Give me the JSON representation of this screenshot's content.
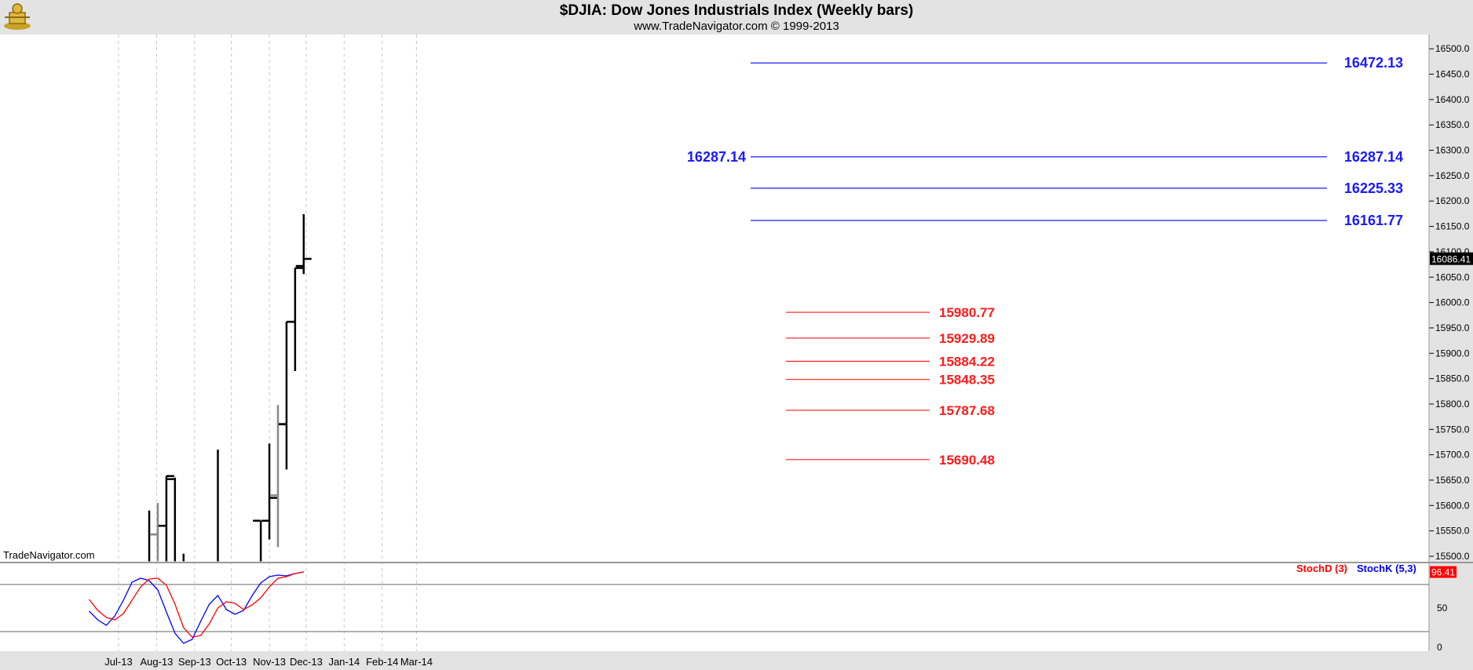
{
  "title": "$DJIA:  Dow Jones Industrials Index  (Weekly bars)",
  "subtitle": "www.TradeNavigator.com © 1999-2013",
  "watermark": "TradeNavigator.com",
  "legend": {
    "stochd": "StochD (3)",
    "stochk": "StochK (5,3)"
  },
  "colors": {
    "blue_levels": "#1a1aff",
    "red_levels": "#ff1a1a",
    "stochd": "#ff0000",
    "stochk": "#0000ff",
    "bar": "#000000",
    "bar_gray": "#888888",
    "background": "#ffffff",
    "frame": "#e3e3e3"
  },
  "chart_data": [
    {
      "type": "ohlc",
      "x_axis_labels": [
        "Jul-13",
        "Aug-13",
        "Sep-13",
        "Oct-13",
        "Nov-13",
        "Dec-13",
        "Jan-14",
        "Feb-14",
        "Mar-14"
      ],
      "x_axis_dates": [
        "2013-07-01",
        "2013-08-01",
        "2013-09-01",
        "2013-10-01",
        "2013-11-01",
        "2013-12-01",
        "2014-01-01",
        "2014-02-01",
        "2014-03-01"
      ],
      "y_ticks": [
        "15500.0",
        "15550.0",
        "15600.0",
        "15650.0",
        "15700.0",
        "15750.0",
        "15800.0",
        "15850.0",
        "15900.0",
        "15950.0",
        "16000.0",
        "16050.0",
        "16100.0",
        "16150.0",
        "16200.0",
        "16250.0",
        "16300.0",
        "16350.0",
        "16400.0",
        "16450.0",
        "16500.0"
      ],
      "ylim": [
        15490,
        16540
      ],
      "last_price": "16086.41",
      "bars": [
        {
          "date": "2013-07-26",
          "high": 15590,
          "low": 15490,
          "close": 15543,
          "color": "black"
        },
        {
          "date": "2013-08-02",
          "high": 15605,
          "low": 15490,
          "close": 15560,
          "color": "gray",
          "open": 15543
        },
        {
          "date": "2013-08-09",
          "high": 15658,
          "low": 15490,
          "close": 15658,
          "open": 15560,
          "color": "black"
        },
        {
          "date": "2013-08-16",
          "high": 15655,
          "low": 15490,
          "open": 15652,
          "color": "black"
        },
        {
          "date": "2013-08-23",
          "high": 15505,
          "low": 15490,
          "color": "black"
        },
        {
          "date": "2013-09-20",
          "high": 15710,
          "low": 15490,
          "color": "black"
        },
        {
          "date": "2013-10-25",
          "high": 15570,
          "low": 15490,
          "open": 15570,
          "color": "black"
        },
        {
          "date": "2013-11-01",
          "high": 15722,
          "low": 15533,
          "open": 15570,
          "close": 15615,
          "color": "black"
        },
        {
          "date": "2013-11-08",
          "high": 15798,
          "low": 15518,
          "open": 15620,
          "close": 15761,
          "color": "gray"
        },
        {
          "date": "2013-11-15",
          "high": 15962,
          "low": 15671,
          "open": 15760,
          "close": 15962,
          "color": "black"
        },
        {
          "date": "2013-11-22",
          "high": 16068,
          "low": 15865,
          "open": 15962,
          "close": 16068,
          "color": "black"
        },
        {
          "date": "2013-11-29",
          "high": 16174,
          "low": 16056,
          "open": 16072,
          "close": 16086,
          "color": "black"
        }
      ],
      "levels_blue": [
        {
          "value": 16472.13,
          "label": "16472.13"
        },
        {
          "value": 16287.14,
          "label": "16287.14",
          "left_label": "16287.14"
        },
        {
          "value": 16225.33,
          "label": "16225.33"
        },
        {
          "value": 16161.77,
          "label": "16161.77"
        }
      ],
      "levels_red": [
        {
          "value": 15980.77,
          "label": "15980.77"
        },
        {
          "value": 15929.89,
          "label": "15929.89"
        },
        {
          "value": 15884.22,
          "label": "15884.22"
        },
        {
          "value": 15848.35,
          "label": "15848.35"
        },
        {
          "value": 15787.68,
          "label": "15787.68"
        },
        {
          "value": 15690.48,
          "label": "15690.48"
        }
      ]
    },
    {
      "type": "line",
      "title": "",
      "y_ticks": [
        "0",
        "50"
      ],
      "ylim": [
        0,
        100
      ],
      "reference_lines": [
        20,
        80
      ],
      "last_value": "96.41",
      "series": [
        {
          "name": "StochK (5,3)",
          "color": "#0000ff",
          "x": [
            "2013-06-07",
            "2013-06-14",
            "2013-06-21",
            "2013-06-28",
            "2013-07-05",
            "2013-07-12",
            "2013-07-19",
            "2013-07-26",
            "2013-08-02",
            "2013-08-09",
            "2013-08-16",
            "2013-08-23",
            "2013-08-30",
            "2013-09-06",
            "2013-09-13",
            "2013-09-20",
            "2013-09-27",
            "2013-10-04",
            "2013-10-11",
            "2013-10-18",
            "2013-10-25",
            "2013-11-01",
            "2013-11-08",
            "2013-11-15",
            "2013-11-22",
            "2013-11-29"
          ],
          "values": [
            46,
            35,
            28,
            40,
            60,
            83,
            88,
            85,
            73,
            45,
            18,
            5,
            10,
            33,
            55,
            66,
            48,
            42,
            47,
            66,
            82,
            90,
            92,
            91,
            94,
            96
          ]
        },
        {
          "name": "StochD (3)",
          "color": "#ff0000",
          "x": [
            "2013-06-07",
            "2013-06-14",
            "2013-06-21",
            "2013-06-28",
            "2013-07-05",
            "2013-07-12",
            "2013-07-19",
            "2013-07-26",
            "2013-08-02",
            "2013-08-09",
            "2013-08-16",
            "2013-08-23",
            "2013-08-30",
            "2013-09-06",
            "2013-09-13",
            "2013-09-20",
            "2013-09-27",
            "2013-10-04",
            "2013-10-11",
            "2013-10-18",
            "2013-10-25",
            "2013-11-01",
            "2013-11-08",
            "2013-11-15",
            "2013-11-22",
            "2013-11-29"
          ],
          "values": [
            61,
            47,
            38,
            35,
            43,
            60,
            77,
            87,
            88,
            79,
            55,
            25,
            13,
            15,
            30,
            50,
            58,
            56,
            48,
            54,
            63,
            77,
            88,
            90,
            94,
            96
          ]
        }
      ]
    }
  ]
}
